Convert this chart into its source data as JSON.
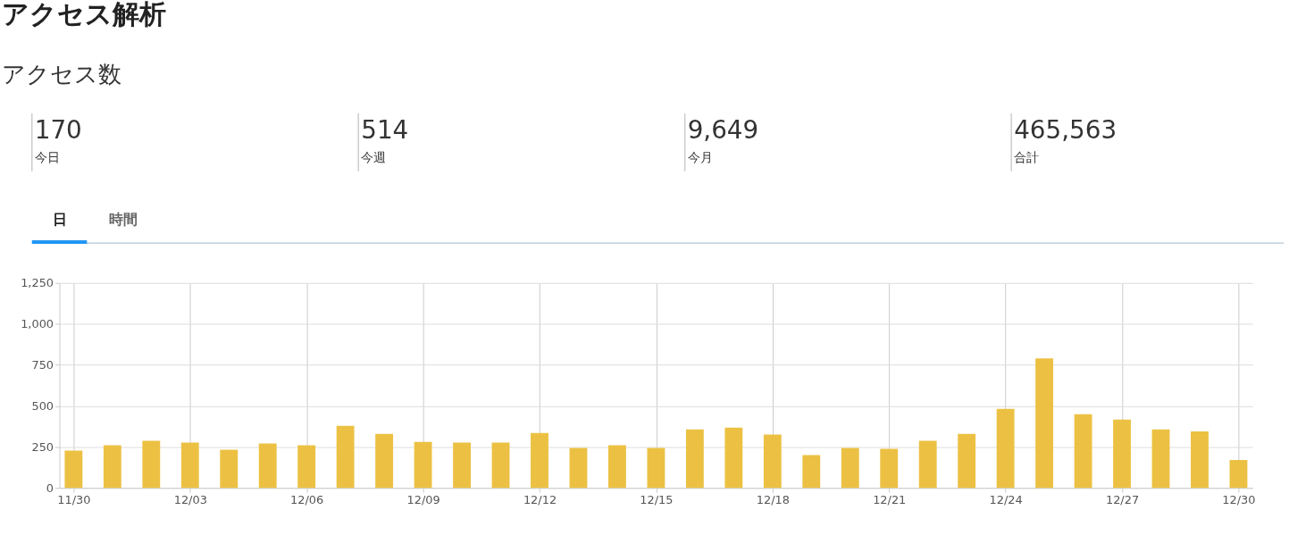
{
  "chart_data": [
    {
      "type": "other",
      "title": "アクセス解析",
      "subtitle": "アクセス数",
      "annotations": [
        "170",
        "今日",
        "514",
        "今週",
        "9,649",
        "今月",
        "465,563",
        "合計",
        "日",
        "時間"
      ]
    },
    {
      "type": "bar",
      "categories": [
        "11/30",
        null,
        null,
        "12/03",
        null,
        null,
        "12/06",
        null,
        null,
        "12/09",
        null,
        null,
        "12/12",
        null,
        null,
        "12/15",
        null,
        null,
        "12/18",
        null,
        null,
        "12/21",
        null,
        null,
        "12/24",
        null,
        null,
        "12/27",
        null,
        null,
        "12/30"
      ],
      "series": [
        {
          "color": "#ecc143",
          "values": [
            227,
            260,
            287,
            276,
            233,
            271,
            260,
            379,
            330,
            281,
            276,
            276,
            335,
            244,
            260,
            244,
            357,
            368,
            325,
            200,
            244,
            238,
            287,
            330,
            482,
            790,
            449,
            417,
            357,
            344,
            170
          ]
        }
      ],
      "ylim": [
        0,
        1250
      ],
      "yticks": [
        0,
        250,
        500,
        750,
        {
          "value": 1000,
          "label": "1,000"
        },
        {
          "value": 1250,
          "label": "1,250"
        }
      ],
      "grid": true
    }
  ]
}
